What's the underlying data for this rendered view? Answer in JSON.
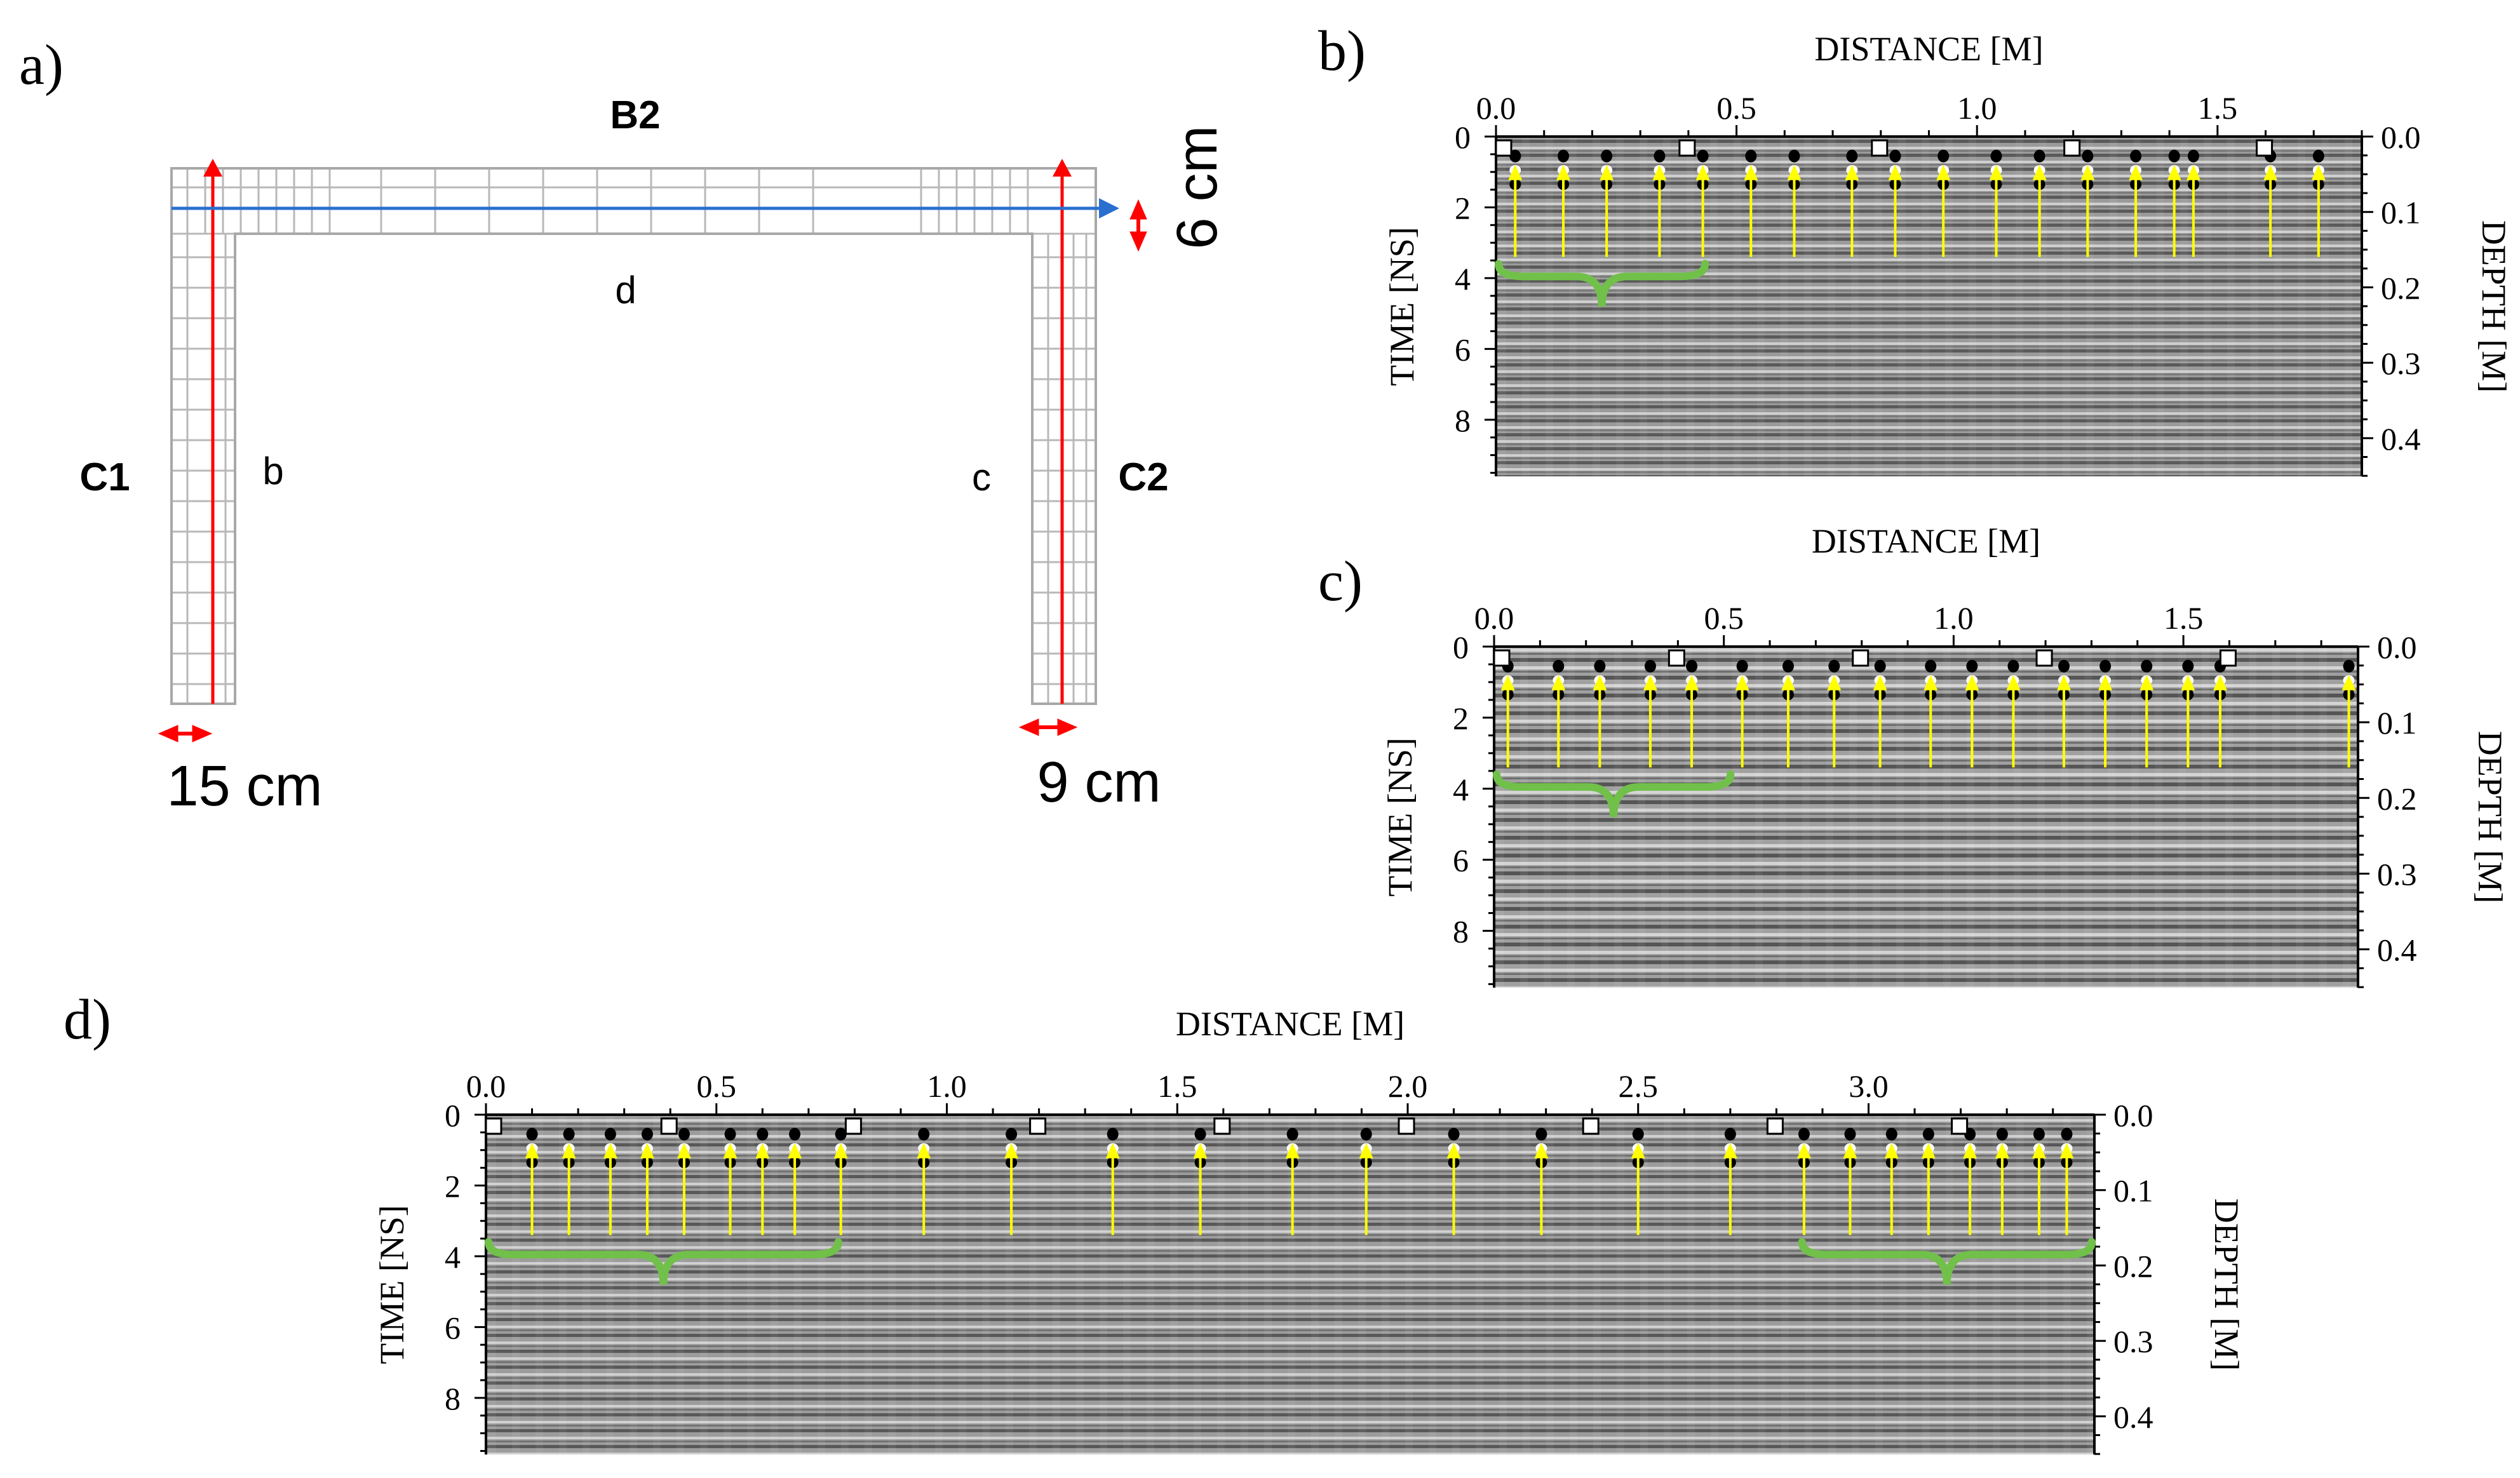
{
  "colors": {
    "rebar_red": "#ff0000",
    "arrow_blue": "#2a6fcf",
    "yellow": "#ffff00",
    "green": "#70c04a",
    "grid": "#b8b8b8"
  },
  "panel_a": {
    "label": "a)",
    "beam_label": "B2",
    "left_column_label": "C1",
    "right_column_label": "C2",
    "profile_b_label": "b",
    "profile_c_label": "c",
    "profile_d_label": "d",
    "left_cover": "15 cm",
    "right_cover": "9 cm",
    "top_cover": "6 cm"
  },
  "radargrams": [
    {
      "id": "b",
      "panel_label": "b)",
      "xlabel": "DISTANCE [M]",
      "ylabel": "TIME [NS]",
      "y2label": "DEPTH [M]",
      "x_range": [
        0,
        1.8
      ],
      "x_ticks": [
        "0.0",
        "0.5",
        "1.0",
        "1.5"
      ],
      "time_range": [
        0,
        9.6
      ],
      "time_ticks": [
        "0",
        "2",
        "4",
        "6",
        "8"
      ],
      "depth_ticks": [
        "0.0",
        "0.1",
        "0.2",
        "0.3",
        "0.4"
      ],
      "markers_m": [
        0.0,
        0.4,
        0.8,
        1.2,
        1.6
      ],
      "rebars_m": [
        0.04,
        0.14,
        0.23,
        0.34,
        0.43,
        0.53,
        0.62,
        0.74,
        0.83,
        0.93,
        1.04,
        1.13,
        1.23,
        1.33,
        1.41,
        1.45,
        1.61,
        1.71
      ],
      "braces": [
        [
          0.0,
          0.44
        ]
      ]
    },
    {
      "id": "c",
      "panel_label": "c)",
      "xlabel": "DISTANCE [M]",
      "ylabel": "TIME [NS]",
      "y2label": "DEPTH [M]",
      "x_range": [
        0,
        1.88
      ],
      "x_ticks": [
        "0.0",
        "0.5",
        "1.0",
        "1.5"
      ],
      "time_range": [
        0,
        9.6
      ],
      "time_ticks": [
        "0",
        "2",
        "4",
        "6",
        "8"
      ],
      "depth_ticks": [
        "0.0",
        "0.1",
        "0.2",
        "0.3",
        "0.4"
      ],
      "markers_m": [
        0.0,
        0.4,
        0.8,
        1.2,
        1.6
      ],
      "rebars_m": [
        0.03,
        0.14,
        0.23,
        0.34,
        0.43,
        0.54,
        0.64,
        0.74,
        0.84,
        0.95,
        1.04,
        1.13,
        1.24,
        1.33,
        1.42,
        1.51,
        1.58,
        1.86
      ],
      "braces": [
        [
          0.0,
          0.52
        ]
      ]
    },
    {
      "id": "d",
      "panel_label": "d)",
      "xlabel": "DISTANCE [M]",
      "ylabel": "TIME [NS]",
      "y2label": "DEPTH [M]",
      "x_range": [
        0,
        3.49
      ],
      "x_ticks": [
        "0.0",
        "0.5",
        "1.0",
        "1.5",
        "2.0",
        "2.5",
        "3.0"
      ],
      "time_range": [
        0,
        9.6
      ],
      "time_ticks": [
        "0",
        "2",
        "4",
        "6",
        "8"
      ],
      "depth_ticks": [
        "0.0",
        "0.1",
        "0.2",
        "0.3",
        "0.4"
      ],
      "markers_m": [
        0.0,
        0.4,
        0.8,
        1.2,
        1.6,
        2.0,
        2.4,
        2.8,
        3.2
      ],
      "rebars_m": [
        0.1,
        0.18,
        0.27,
        0.35,
        0.43,
        0.53,
        0.6,
        0.67,
        0.77,
        0.95,
        1.14,
        1.36,
        1.55,
        1.75,
        1.91,
        2.1,
        2.29,
        2.5,
        2.7,
        2.86,
        2.96,
        3.05,
        3.13,
        3.22,
        3.29,
        3.37,
        3.43
      ],
      "braces": [
        [
          0.0,
          0.77
        ],
        [
          2.85,
          3.49
        ]
      ]
    }
  ]
}
